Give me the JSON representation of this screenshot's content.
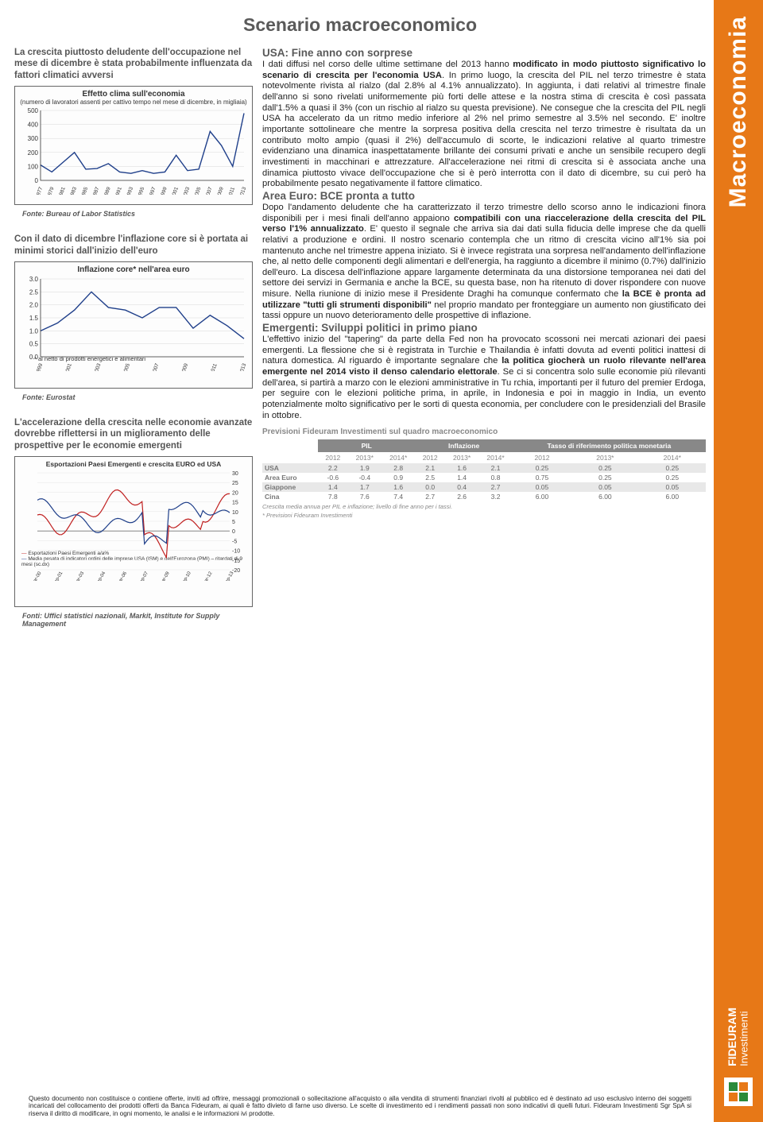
{
  "sidebar": {
    "category": "Macroeconomia",
    "brand": "FIDEURAM",
    "brand_sub": "Investimenti"
  },
  "title": "Scenario macroeconomico",
  "left": {
    "cap1": "La crescita piuttosto deludente dell'occupazione nel mese di dicembre è stata probabilmente influenzata da fattori climatici avversi",
    "chart1": {
      "title": "Effetto clima sull'economia",
      "subtitle": "(numero di lavoratori assenti per cattivo tempo nel mese di dicembre, in migliaia)",
      "ylim": [
        0,
        500
      ],
      "ytick_step": 100,
      "xlabels": [
        "1977",
        "1979",
        "1981",
        "1983",
        "1985",
        "1987",
        "1989",
        "1991",
        "1993",
        "1995",
        "1997",
        "1999",
        "2001",
        "2003",
        "2005",
        "2007",
        "2009",
        "2011",
        "2013"
      ],
      "values": [
        110,
        60,
        130,
        200,
        80,
        85,
        120,
        60,
        50,
        70,
        50,
        60,
        180,
        70,
        80,
        350,
        250,
        100,
        480
      ],
      "line_color": "#1f3f8a",
      "grid_color": "#d8d8d8",
      "bg": "#ffffff"
    },
    "source1": "Fonte: Bureau of Labor Statistics",
    "cap2": "Con il dato di dicembre l'inflazione core si è portata ai minimi storici dall'inizio dell'euro",
    "chart2": {
      "title": "Inflazione core* nell'area euro",
      "ylim": [
        0,
        3
      ],
      "ytick_step": 0.5,
      "xlabels": [
        "1999",
        "2001",
        "2003",
        "2005",
        "2007",
        "2009",
        "2011",
        "2013"
      ],
      "values": [
        1.0,
        1.3,
        1.8,
        2.5,
        1.9,
        1.8,
        1.5,
        1.9,
        1.9,
        1.1,
        1.6,
        1.2,
        0.7
      ],
      "note": "* al netto di prodotti energetici e alimentari",
      "line_color": "#1f3f8a",
      "grid_color": "#d8d8d8",
      "bg": "#ffffff"
    },
    "source2": "Fonte: Eurostat",
    "cap3": "L'accelerazione della crescita nelle economie avanzate dovrebbe riflettersi in un miglioramento delle prospettive per le economie emergenti",
    "chart3": {
      "title": "Esportazioni Paesi Emergenti e crescita EURO ed USA",
      "left_ylim": [
        -20,
        30
      ],
      "left_ytick_step": 5,
      "series_a_color": "#c02020",
      "series_b_color": "#1f3f8a",
      "legend_a": "Esportazioni Paesi Emergenti a/a%",
      "legend_b": "Media pesata di indicatori ordini delle imprese USA (ISM) e dell'Eurozona (PMI) – ritardati di 9 mesi (sc.dx)"
    },
    "source3": "Fonti: Uffici statistici nazionali, Markit, Institute for Supply Management"
  },
  "right": {
    "h1": "USA: Fine anno con sorprese",
    "p1": "I dati diffusi nel corso delle ultime settimane del 2013 hanno <b>modificato in modo piuttosto significativo lo scenario di crescita per l'economia USA</b>. In primo luogo, la crescita del PIL nel terzo trimestre è stata notevolmente rivista al rialzo (dal 2.8% al 4.1% annualizzato). In aggiunta, i dati relativi al trimestre finale dell'anno si sono rivelati uniformemente più forti delle attese e la nostra stima di crescita è così passata dall'1.5% a quasi il 3% (con un rischio al rialzo su questa previsione). Ne consegue che la crescita del PIL negli USA ha accelerato da un ritmo medio inferiore al 2% nel primo semestre al 3.5% nel secondo. E' inoltre importante sottolineare che mentre la sorpresa positiva della crescita nel terzo trimestre è risultata da un contributo molto ampio (quasi il 2%) dell'accumulo di scorte, le indicazioni relative al quarto trimestre evidenziano una dinamica inaspettatamente brillante dei consumi privati e anche un sensibile recupero degli investimenti in macchinari e attrezzature. All'accelerazione nei ritmi di crescita si è associata anche una dinamica piuttosto vivace dell'occupazione che si è però interrotta con il dato di dicembre, su cui però ha probabilmente pesato negativamente il fattore climatico.",
    "h2": "Area Euro: BCE pronta a tutto",
    "p2": "Dopo l'andamento deludente che ha caratterizzato il terzo trimestre dello scorso anno le indicazioni finora disponibili per i mesi finali dell'anno appaiono <b>compatibili con una riaccelerazione della crescita del PIL verso l'1% annualizzato</b>. E' questo il segnale che arriva sia dai dati sulla fiducia delle imprese che da quelli relativi a produzione e ordini. Il nostro scenario contempla che un ritmo di crescita vicino all'1% sia poi mantenuto anche nel trimestre appena iniziato. Si è invece registrata una sorpresa nell'andamento dell'inflazione che, al netto delle componenti degli alimentari e dell'energia, ha raggiunto a dicembre il minimo (0.7%) dall'inizio dell'euro. La discesa dell'inflazione appare largamente determinata da una distorsione temporanea nei dati del settore dei servizi in Germania e anche la BCE, su questa base, non ha ritenuto di dover rispondere con nuove misure. Nella riunione di inizio mese il Presidente Draghi ha comunque confermato che <b>la BCE è pronta ad utilizzare \"tutti gli strumenti disponibili\"</b> nel proprio mandato per fronteggiare un aumento non giustificato dei tassi oppure un nuovo deterioramento delle prospettive di inflazione.",
    "h3": "Emergenti: Sviluppi politici in primo piano",
    "p3": "L'effettivo inizio del \"tapering\" da parte della Fed non ha provocato scossoni nei mercati azionari dei paesi emergenti. La flessione che si è registrata in Turchie e Thailandia è infatti dovuta ad eventi politici inattesi di natura domestica. Al riguardo è importante segnalare che <b>la politica giocherà un ruolo rilevante nell'area emergente nel 2014 visto il denso calendario elettorale</b>. Se ci si concentra solo sulle economie più rilevanti dell'area, si partirà a marzo con le elezioni amministrative in Tu rchia, importanti per il futuro del premier Erdoga, per seguire con le elezioni politiche prima, in aprile, in Indonesia e poi in maggio in India, un evento potenzialmente molto significativo per le sorti di questa economia, per concludere con le presidenziali del Brasile in ottobre."
  },
  "forecast": {
    "title": "Previsioni Fideuram Investimenti sul quadro macroeconomico",
    "groups": [
      "PIL",
      "Inflazione",
      "Tasso di riferimento politica monetaria"
    ],
    "years": [
      "2012",
      "2013*",
      "2014*",
      "2012",
      "2013*",
      "2014*",
      "2012",
      "2013*",
      "2014*"
    ],
    "rows": [
      {
        "label": "USA",
        "v": [
          "2.2",
          "1.9",
          "2.8",
          "2.1",
          "1.6",
          "2.1",
          "0.25",
          "0.25",
          "0.25"
        ]
      },
      {
        "label": "Area Euro",
        "v": [
          "-0.6",
          "-0.4",
          "0.9",
          "2.5",
          "1.4",
          "0.8",
          "0.75",
          "0.25",
          "0.25"
        ]
      },
      {
        "label": "Giappone",
        "v": [
          "1.4",
          "1.7",
          "1.6",
          "0.0",
          "0.4",
          "2.7",
          "0.05",
          "0.05",
          "0.05"
        ]
      },
      {
        "label": "Cina",
        "v": [
          "7.8",
          "7.6",
          "7.4",
          "2.7",
          "2.6",
          "3.2",
          "6.00",
          "6.00",
          "6.00"
        ]
      }
    ],
    "note1": "Crescita media annua per PIL e inflazione; livello di fine anno per i tassi.",
    "note2": "* Previsioni Fideuram Investimenti"
  },
  "disclaimer": "Questo documento non costituisce o contiene offerte, inviti ad offrire, messaggi promozionali o sollecitazione all'acquisto o alla vendita di strumenti finanziari rivolti al pubblico ed è destinato ad uso esclusivo interno dei soggetti incaricati del collocamento dei prodotti offerti da Banca Fideuram, ai quali è fatto divieto di farne uso diverso. Le scelte di investimento ed i rendimenti passati non sono indicativi di quelli futuri. Fideuram Investimenti Sgr SpA si riserva il diritto di modificare, in ogni momento, le analisi e le informazioni ivi prodotte."
}
